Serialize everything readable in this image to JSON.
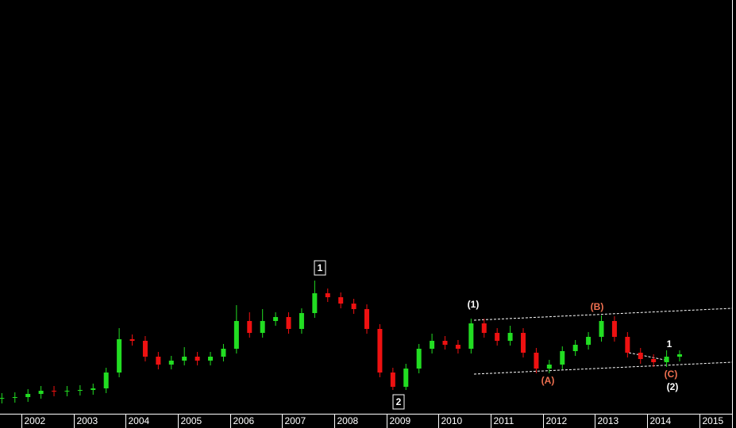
{
  "chart_data": {
    "type": "candlestick",
    "x": [
      2001.625,
      2001.875,
      2002.125,
      2002.375,
      2002.625,
      2002.875,
      2003.125,
      2003.375,
      2003.625,
      2003.875,
      2004.125,
      2004.375,
      2004.625,
      2004.875,
      2005.125,
      2005.375,
      2005.625,
      2005.875,
      2006.125,
      2006.375,
      2006.625,
      2006.875,
      2007.125,
      2007.375,
      2007.625,
      2007.875,
      2008.125,
      2008.375,
      2008.625,
      2008.875,
      2009.125,
      2009.375,
      2009.625,
      2009.875,
      2010.125,
      2010.375,
      2010.625,
      2010.875,
      2011.125,
      2011.375,
      2011.625,
      2011.875,
      2012.125,
      2012.375,
      2012.625,
      2012.875,
      2013.125,
      2013.375,
      2013.625,
      2013.875,
      2014.125,
      2014.375,
      2014.625
    ],
    "open": [
      4.75,
      5.0,
      5.25,
      6.25,
      7.25,
      7.0,
      7.25,
      7.5,
      8.0,
      13,
      23.5,
      23,
      18,
      15.5,
      16.75,
      18,
      16.75,
      18,
      20.5,
      29.25,
      25.5,
      29.25,
      30.5,
      26.75,
      31.75,
      38,
      36.75,
      34.75,
      33,
      26.75,
      13,
      8.5,
      14.25,
      20.5,
      23,
      21.75,
      20.5,
      28.5,
      25.5,
      23,
      25.5,
      19.25,
      14.25,
      15.5,
      19.75,
      21.75,
      24.25,
      29.25,
      24.25,
      19.25,
      17.25,
      16.25,
      18
    ],
    "high": [
      6.5,
      6.75,
      7.75,
      8.75,
      8.75,
      8.75,
      9,
      9.5,
      14.5,
      27,
      25,
      24.5,
      19.5,
      18.25,
      21,
      19.5,
      19.5,
      22,
      34.25,
      32,
      33,
      32,
      32,
      33.25,
      42,
      39.5,
      38.25,
      36.25,
      34.5,
      28.25,
      14.5,
      15.75,
      22,
      25.25,
      24.5,
      23.25,
      30,
      30,
      27,
      27.75,
      27,
      20.75,
      17,
      21.25,
      23.25,
      25.75,
      31,
      30.75,
      25.75,
      20.75,
      18.75,
      20,
      20
    ],
    "low": [
      3.25,
      3.5,
      3.75,
      4.75,
      5.5,
      5.5,
      5.75,
      6,
      6.5,
      11.5,
      21.5,
      16.5,
      14,
      14,
      15.25,
      15.25,
      15.25,
      16.5,
      19,
      24,
      24,
      27.75,
      25.25,
      25.25,
      30.25,
      35.25,
      33.25,
      31.5,
      25.25,
      11.5,
      7.5,
      7.5,
      12.75,
      19,
      20.25,
      19,
      19,
      24,
      21.5,
      21.5,
      17.75,
      12.75,
      12.75,
      14,
      18.25,
      20.25,
      22.75,
      22.75,
      17.75,
      15.75,
      14.75,
      14.75,
      16.5
    ],
    "close": [
      5.0,
      5.25,
      6.25,
      7.25,
      7.0,
      7.25,
      7.5,
      8.0,
      13,
      23.5,
      23,
      18,
      15.5,
      16.75,
      18,
      16.75,
      18,
      20.5,
      29.25,
      25.5,
      29.25,
      30.5,
      26.75,
      31.75,
      38,
      36.75,
      34.75,
      33,
      26.75,
      13,
      8.5,
      14.25,
      20.5,
      23,
      21.75,
      20.5,
      28.5,
      25.5,
      23,
      25.5,
      19.25,
      14.25,
      15.5,
      19.75,
      21.75,
      24.25,
      29.25,
      24.25,
      19.25,
      17.25,
      16.25,
      18,
      18.75
    ],
    "up_color": "#22dd22",
    "down_color": "#ee1111",
    "xlim": [
      2001.589,
      2015.63
    ],
    "xticks": [
      2002,
      2003,
      2004,
      2005,
      2006,
      2007,
      2008,
      2009,
      2010,
      2011,
      2012,
      2013,
      2014,
      2015
    ],
    "ylim": [
      0,
      130.5
    ],
    "annotations": [
      {
        "text": "1",
        "boxed": true,
        "color": "#ffffff"
      },
      {
        "text": "2",
        "boxed": true,
        "color": "#ffffff"
      },
      {
        "text": "(1)",
        "boxed": false,
        "color": "#ffffff"
      },
      {
        "text": "(A)",
        "boxed": false,
        "color": "#f07050"
      },
      {
        "text": "(B)",
        "boxed": false,
        "color": "#f07050"
      },
      {
        "text": "(C)",
        "boxed": false,
        "color": "#f07050"
      },
      {
        "text": "1",
        "boxed": false,
        "color": "#ffffff"
      },
      {
        "text": "(2)",
        "boxed": false,
        "color": "#ffffff"
      }
    ]
  }
}
